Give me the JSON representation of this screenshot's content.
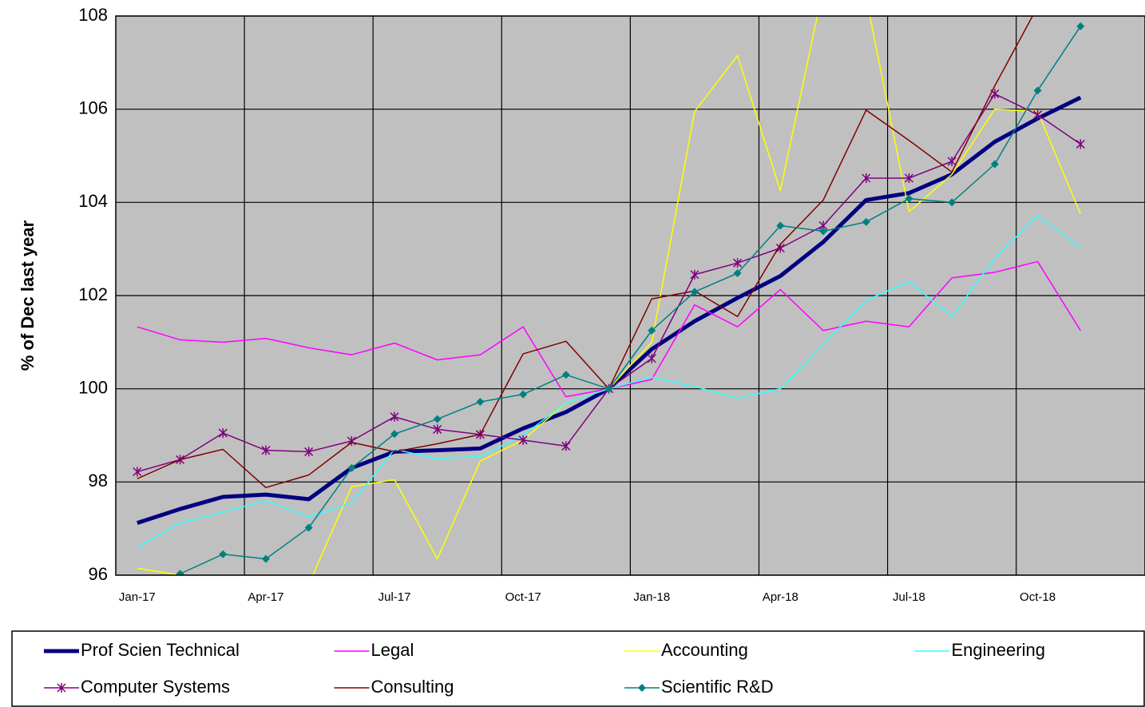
{
  "chart_data": {
    "type": "line",
    "y_label": "% of Dec last year",
    "categories": [
      "Jan-17",
      null,
      null,
      "Apr-17",
      null,
      null,
      "Jul-17",
      null,
      null,
      "Oct-17",
      null,
      null,
      "Jan-18",
      null,
      null,
      "Apr-18",
      null,
      null,
      "Jul-18",
      null,
      null,
      "Oct-18",
      null,
      null
    ],
    "ylim": [
      96,
      108
    ],
    "yticks": [
      96,
      98,
      100,
      102,
      104,
      106,
      108
    ],
    "grid": true,
    "series": [
      {
        "name": "Prof Scien Technical",
        "color": "#000080",
        "width": 5,
        "marker": "none",
        "values": [
          97.12,
          97.42,
          97.68,
          97.73,
          97.63,
          98.3,
          98.65,
          98.68,
          98.72,
          99.15,
          99.5,
          100,
          100.85,
          101.45,
          101.95,
          102.42,
          103.15,
          104.05,
          104.2,
          104.6,
          105.3,
          105.8,
          106.25,
          null
        ]
      },
      {
        "name": "Legal",
        "color": "#ff00ff",
        "width": 1.5,
        "marker": "none",
        "values": [
          101.33,
          101.05,
          101.0,
          101.08,
          100.88,
          100.73,
          100.98,
          100.62,
          100.73,
          101.33,
          99.83,
          100,
          100.2,
          101.8,
          101.33,
          102.13,
          101.25,
          101.45,
          101.33,
          102.38,
          102.5,
          102.73,
          101.25,
          null
        ]
      },
      {
        "name": "Accounting",
        "color": "#ffff00",
        "width": 1.5,
        "marker": "none",
        "values": [
          96.15,
          96.0,
          95.8,
          95.6,
          95.8,
          97.9,
          98.05,
          96.35,
          98.45,
          98.9,
          99.7,
          100,
          101.0,
          105.95,
          107.15,
          104.25,
          108.6,
          108.4,
          103.8,
          104.6,
          106.0,
          105.95,
          103.75,
          null
        ]
      },
      {
        "name": "Engineering",
        "color": "#33ffff",
        "width": 1.5,
        "marker": "none",
        "values": [
          96.6,
          97.12,
          97.35,
          97.6,
          97.25,
          97.55,
          98.7,
          98.5,
          98.55,
          99.0,
          99.7,
          100,
          100.25,
          100.05,
          99.8,
          100.0,
          100.95,
          101.9,
          102.3,
          101.55,
          102.8,
          103.72,
          103.03,
          null
        ]
      },
      {
        "name": "Computer Systems",
        "color": "#800080",
        "width": 1.5,
        "marker": "star",
        "values": [
          98.22,
          98.48,
          99.05,
          98.68,
          98.65,
          98.88,
          99.4,
          99.13,
          99.02,
          98.9,
          98.77,
          100,
          100.65,
          102.45,
          102.7,
          103.02,
          103.5,
          104.52,
          104.52,
          104.88,
          106.33,
          105.88,
          105.25,
          null
        ]
      },
      {
        "name": "Consulting",
        "color": "#800000",
        "width": 1.5,
        "marker": "none",
        "values": [
          98.07,
          98.48,
          98.7,
          97.88,
          98.15,
          98.85,
          98.65,
          98.82,
          99.02,
          100.75,
          101.02,
          100,
          101.93,
          102.1,
          101.55,
          103.1,
          104.05,
          105.98,
          105.33,
          104.65,
          106.5,
          108.2,
          108.8,
          null
        ]
      },
      {
        "name": "Scientific R&D",
        "color": "#008080",
        "width": 1.5,
        "marker": "diamond",
        "values": [
          95.7,
          96.03,
          96.45,
          96.35,
          97.02,
          98.3,
          99.03,
          99.35,
          99.72,
          99.88,
          100.3,
          100,
          101.25,
          102.08,
          102.48,
          103.5,
          103.38,
          103.58,
          104.08,
          104.0,
          104.82,
          106.4,
          107.78,
          null
        ]
      }
    ]
  }
}
